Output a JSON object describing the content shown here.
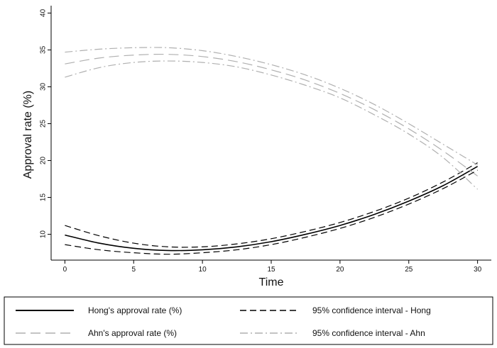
{
  "chart_data": {
    "type": "line",
    "xlabel": "Time",
    "ylabel": "Approval rate (%)",
    "xlim": [
      -1,
      31
    ],
    "ylim": [
      6.5,
      41
    ],
    "xticks": [
      0,
      5,
      10,
      15,
      20,
      25,
      30
    ],
    "yticks": [
      10,
      15,
      20,
      25,
      30,
      35,
      40
    ],
    "grid": false,
    "legend_position": "bottom",
    "x": [
      0,
      2.5,
      5,
      7.5,
      10,
      12.5,
      15,
      17.5,
      20,
      22.5,
      25,
      27.5,
      30
    ],
    "series": [
      {
        "name": "Hong's approval rate (%)",
        "style": "solid",
        "color": "#000000",
        "values": [
          9.9,
          8.8,
          8.1,
          7.8,
          7.9,
          8.3,
          9.0,
          10.0,
          11.2,
          12.7,
          14.5,
          16.6,
          19.2
        ]
      },
      {
        "name": "Ahn's approval rate (%)",
        "style": "longdash",
        "color": "#b0b0b0",
        "values": [
          33.1,
          33.9,
          34.3,
          34.4,
          34.1,
          33.4,
          32.3,
          30.9,
          29.1,
          26.9,
          24.3,
          21.3,
          17.9
        ]
      },
      {
        "name": "95% confidence interval - Hong",
        "style": "dash",
        "color": "#000000",
        "band": true,
        "lower": [
          8.6,
          7.9,
          7.5,
          7.3,
          7.5,
          7.9,
          8.6,
          9.6,
          10.8,
          12.3,
          14.1,
          16.2,
          18.7
        ],
        "upper": [
          11.2,
          9.8,
          8.8,
          8.3,
          8.3,
          8.7,
          9.4,
          10.4,
          11.6,
          13.1,
          14.9,
          17.1,
          19.7
        ]
      },
      {
        "name": "95% confidence interval - Ahn",
        "style": "dashdot",
        "color": "#b0b0b0",
        "band": true,
        "lower": [
          31.3,
          32.6,
          33.3,
          33.5,
          33.3,
          32.7,
          31.6,
          30.2,
          28.5,
          26.2,
          23.6,
          20.4,
          16.1
        ],
        "upper": [
          34.7,
          35.1,
          35.3,
          35.3,
          34.9,
          34.1,
          33.0,
          31.6,
          29.8,
          27.6,
          25.0,
          22.2,
          19.4
        ]
      }
    ]
  }
}
